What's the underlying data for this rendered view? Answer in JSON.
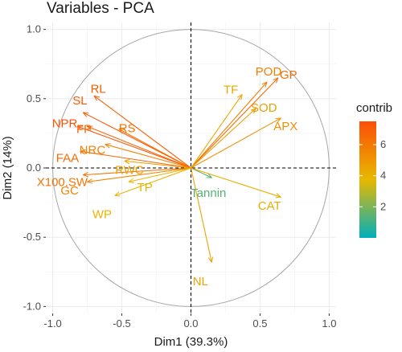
{
  "chart_data": {
    "type": "scatter",
    "subtype": "pca-variable-correlation-circle",
    "title": "Variables - PCA",
    "xlabel": "Dim1 (39.3%)",
    "ylabel": "Dim2 (14%)",
    "xlim": [
      -1.05,
      1.05
    ],
    "ylim": [
      -1.05,
      1.05
    ],
    "xticks": [
      -1.0,
      -0.5,
      0.0,
      0.5,
      1.0
    ],
    "yticks": [
      -1.0,
      -0.5,
      0.0,
      0.5,
      1.0
    ],
    "x_tick_labels": [
      "-1.0",
      "-0.5",
      "0.0",
      "0.5",
      "1.0"
    ],
    "y_tick_labels": [
      "-1.0",
      "-0.5",
      "0.0",
      "0.5",
      "1.0"
    ],
    "grid": true,
    "unit_circle": true,
    "legend": {
      "title": "contrib",
      "placement": "right",
      "range": [
        0,
        7.5
      ],
      "ticks": [
        2,
        4,
        6
      ],
      "tick_labels": [
        "2",
        "4",
        "6"
      ],
      "colors": [
        "#00AFBB",
        "#E7B800",
        "#FC4E07"
      ]
    },
    "variables": [
      {
        "name": "SL",
        "x": -0.78,
        "y": 0.4,
        "contrib": 7.0
      },
      {
        "name": "RL",
        "x": -0.7,
        "y": 0.52,
        "contrib": 6.8
      },
      {
        "name": "NPR",
        "x": -0.82,
        "y": 0.3,
        "contrib": 7.3
      },
      {
        "name": "FP",
        "x": -0.75,
        "y": 0.3,
        "contrib": 6.6
      },
      {
        "name": "RS",
        "x": -0.52,
        "y": 0.28,
        "contrib": 6.2
      },
      {
        "name": "NRC",
        "x": -0.62,
        "y": 0.17,
        "contrib": 5.6
      },
      {
        "name": "FAA",
        "x": -0.8,
        "y": 0.12,
        "contrib": 6.6
      },
      {
        "name": "X100.SW",
        "x": -0.78,
        "y": -0.05,
        "contrib": 6.2
      },
      {
        "name": "RWC",
        "x": -0.48,
        "y": 0.05,
        "contrib": 4.6
      },
      {
        "name": "GC",
        "x": -0.75,
        "y": -0.1,
        "contrib": 5.6
      },
      {
        "name": "TP",
        "x": -0.45,
        "y": -0.1,
        "contrib": 3.8
      },
      {
        "name": "WP",
        "x": -0.55,
        "y": -0.2,
        "contrib": 3.9
      },
      {
        "name": "POD",
        "x": 0.55,
        "y": 0.62,
        "contrib": 5.8
      },
      {
        "name": "GP",
        "x": 0.63,
        "y": 0.65,
        "contrib": 6.4
      },
      {
        "name": "TF",
        "x": 0.37,
        "y": 0.53,
        "contrib": 4.4
      },
      {
        "name": "SOD",
        "x": 0.47,
        "y": 0.43,
        "contrib": 4.6
      },
      {
        "name": "APX",
        "x": 0.65,
        "y": 0.36,
        "contrib": 5.2
      },
      {
        "name": "Tannin",
        "x": 0.15,
        "y": -0.07,
        "contrib": 1.4
      },
      {
        "name": "CAT",
        "x": 0.65,
        "y": -0.21,
        "contrib": 4.1
      },
      {
        "name": "NL",
        "x": 0.15,
        "y": -0.68,
        "contrib": 4.5
      }
    ]
  }
}
